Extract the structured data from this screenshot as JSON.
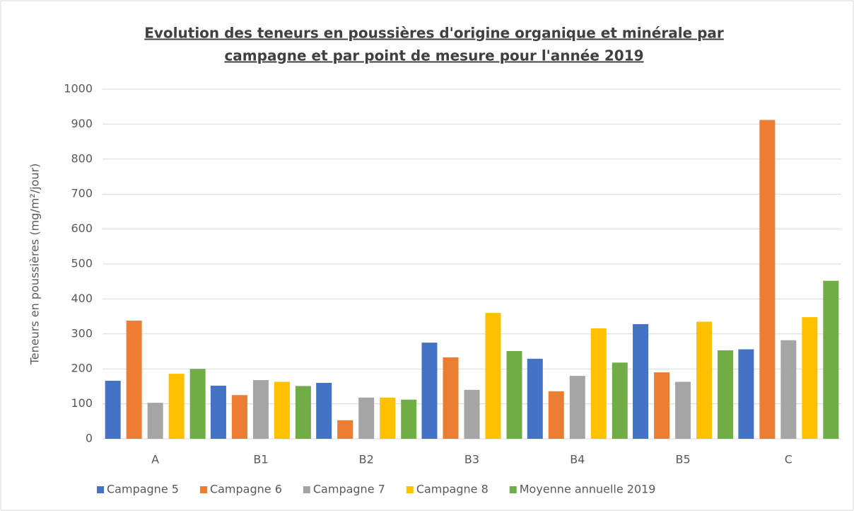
{
  "chart_data": {
    "type": "bar",
    "title": [
      "Evolution des teneurs en poussières d'origine organique et minérale par",
      "campagne et par point de mesure pour l'année 2019"
    ],
    "y_label": "Teneurs en poussières (mg/m²/jour)",
    "categories": [
      "A",
      "B1",
      "B2",
      "B3",
      "B4",
      "B5",
      "C"
    ],
    "series": [
      {
        "name": "Campagne 5",
        "color": "#4472c4",
        "values": [
          166,
          152,
          160,
          275,
          229,
          328,
          256
        ]
      },
      {
        "name": "Campagne 6",
        "color": "#ed7d31",
        "values": [
          338,
          125,
          53,
          233,
          136,
          190,
          912
        ]
      },
      {
        "name": "Campagne 7",
        "color": "#a5a5a5",
        "values": [
          103,
          168,
          118,
          140,
          180,
          163,
          282
        ]
      },
      {
        "name": "Campagne 8",
        "color": "#ffc000",
        "values": [
          186,
          163,
          118,
          360,
          316,
          335,
          348
        ]
      },
      {
        "name": "Moyenne annuelle 2019",
        "color": "#70ad47",
        "values": [
          200,
          151,
          112,
          251,
          218,
          253,
          452
        ]
      }
    ],
    "ylim": [
      0,
      1000
    ],
    "yticks": [
      0,
      100,
      200,
      300,
      400,
      500,
      600,
      700,
      800,
      900,
      1000
    ],
    "grid": true,
    "legend": "bottom"
  }
}
